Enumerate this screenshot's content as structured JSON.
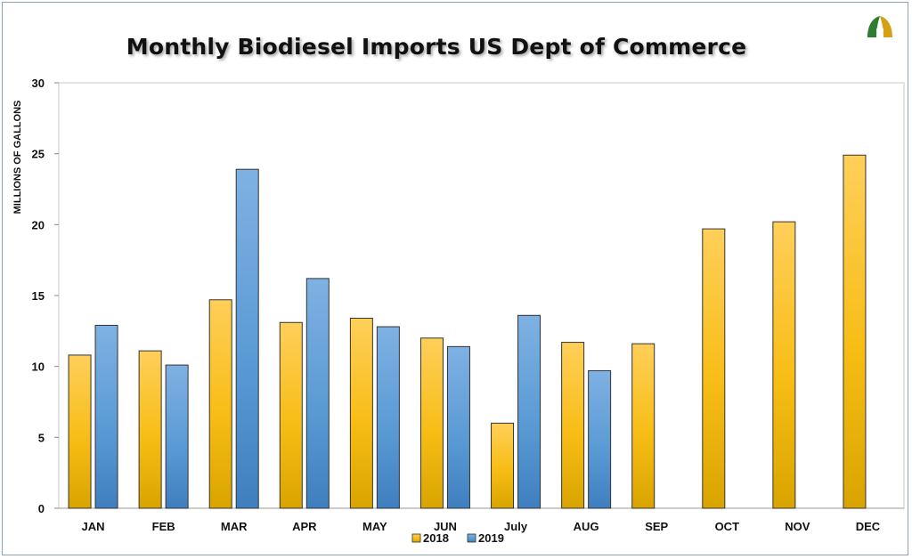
{
  "chart_data": {
    "type": "bar",
    "title": "Monthly Biodiesel Imports US Dept of Commerce",
    "ylabel": "MILLIONS OF GALLONS",
    "xlabel": "",
    "categories": [
      "JAN",
      "FEB",
      "MAR",
      "APR",
      "MAY",
      "JUN",
      "July",
      "AUG",
      "SEP",
      "OCT",
      "NOV",
      "DEC"
    ],
    "series": [
      {
        "name": "2018",
        "color": "#f5b800",
        "values": [
          10.8,
          11.1,
          14.7,
          13.1,
          13.4,
          12.0,
          6.0,
          11.7,
          11.6,
          19.7,
          20.2,
          24.9
        ]
      },
      {
        "name": "2019",
        "color": "#5b9bd5",
        "values": [
          12.9,
          10.1,
          23.9,
          16.2,
          12.8,
          11.4,
          13.6,
          9.7,
          null,
          null,
          null,
          null
        ]
      }
    ],
    "ylim": [
      0,
      30
    ],
    "yticks": [
      0,
      5,
      10,
      15,
      20,
      25,
      30
    ],
    "grid": false,
    "legend_position": "bottom"
  },
  "logo": {
    "name": "company-logo"
  }
}
